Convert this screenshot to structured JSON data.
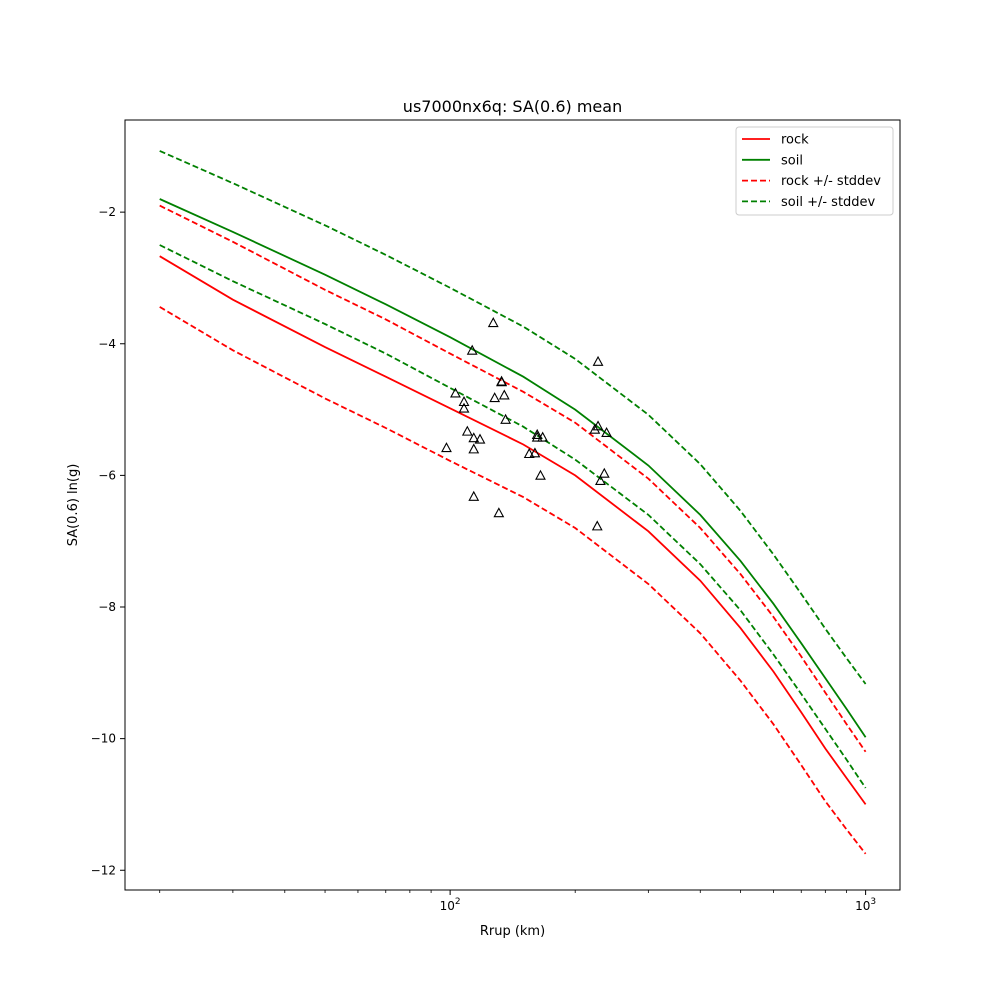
{
  "chart_data": {
    "type": "line",
    "title": "us7000nx6q: SA(0.6) mean",
    "xlabel": "Rrup (km)",
    "ylabel": "SA(0.6) ln(g)",
    "xscale": "log",
    "xlim": [
      16.5,
      1210
    ],
    "ylim": [
      -12.3,
      -0.6
    ],
    "x_ticks": [
      {
        "value": 100,
        "label": "10",
        "exp": "2"
      },
      {
        "value": 1000,
        "label": "10",
        "exp": "3"
      }
    ],
    "y_ticks": [
      {
        "value": -2,
        "label": "−2"
      },
      {
        "value": -4,
        "label": "−4"
      },
      {
        "value": -6,
        "label": "−6"
      },
      {
        "value": -8,
        "label": "−8"
      },
      {
        "value": -10,
        "label": "−10"
      },
      {
        "value": -12,
        "label": "−12"
      }
    ],
    "grid": false,
    "legend_position": "top-right",
    "series": [
      {
        "name": "rock",
        "color": "#ff0000",
        "dash": "solid",
        "x": [
          20,
          30,
          50,
          70,
          100,
          150,
          200,
          300,
          400,
          500,
          600,
          700,
          800,
          900,
          1000
        ],
        "y": [
          -2.67,
          -3.33,
          -4.05,
          -4.5,
          -4.98,
          -5.53,
          -6.0,
          -6.85,
          -7.6,
          -8.32,
          -8.98,
          -9.6,
          -10.15,
          -10.6,
          -11.0
        ]
      },
      {
        "name": "soil",
        "color": "#008000",
        "dash": "solid",
        "x": [
          20,
          30,
          50,
          70,
          100,
          150,
          200,
          300,
          400,
          500,
          600,
          700,
          800,
          900,
          1000
        ],
        "y": [
          -1.8,
          -2.3,
          -2.95,
          -3.4,
          -3.9,
          -4.5,
          -5.0,
          -5.85,
          -6.6,
          -7.3,
          -7.95,
          -8.55,
          -9.08,
          -9.55,
          -9.98
        ]
      },
      {
        "name": "rock +/- stddev",
        "color": "#ff0000",
        "dash": "dashed",
        "x": [
          20,
          30,
          50,
          70,
          100,
          150,
          200,
          300,
          400,
          500,
          600,
          700,
          800,
          900,
          1000
        ],
        "y": [
          -1.9,
          -2.45,
          -3.18,
          -3.63,
          -4.15,
          -4.73,
          -5.2,
          -6.05,
          -6.8,
          -7.5,
          -8.15,
          -8.75,
          -9.3,
          -9.78,
          -10.2
        ]
      },
      {
        "name": "rock +/- stddev",
        "color": "#ff0000",
        "dash": "dashed",
        "x": [
          20,
          30,
          50,
          70,
          100,
          150,
          200,
          300,
          400,
          500,
          600,
          700,
          800,
          900,
          1000
        ],
        "y": [
          -3.44,
          -4.1,
          -4.83,
          -5.28,
          -5.78,
          -6.33,
          -6.8,
          -7.65,
          -8.4,
          -9.12,
          -9.78,
          -10.4,
          -10.95,
          -11.38,
          -11.75
        ]
      },
      {
        "name": "soil +/- stddev",
        "color": "#008000",
        "dash": "dashed",
        "x": [
          20,
          30,
          50,
          70,
          100,
          150,
          200,
          300,
          400,
          500,
          600,
          700,
          800,
          900,
          1000
        ],
        "y": [
          -1.07,
          -1.56,
          -2.2,
          -2.65,
          -3.15,
          -3.74,
          -4.23,
          -5.08,
          -5.83,
          -6.54,
          -7.2,
          -7.8,
          -8.33,
          -8.78,
          -9.17
        ]
      },
      {
        "name": "soil +/- stddev",
        "color": "#008000",
        "dash": "dashed",
        "x": [
          20,
          30,
          50,
          70,
          100,
          150,
          200,
          300,
          400,
          500,
          600,
          700,
          800,
          900,
          1000
        ],
        "y": [
          -2.5,
          -3.05,
          -3.7,
          -4.15,
          -4.67,
          -5.26,
          -5.76,
          -6.6,
          -7.35,
          -8.05,
          -8.72,
          -9.32,
          -9.85,
          -10.32,
          -10.75
        ]
      }
    ],
    "observations": {
      "marker": "triangle-open",
      "color": "#000000",
      "points": [
        {
          "x": 98,
          "y": -5.58
        },
        {
          "x": 103,
          "y": -4.75
        },
        {
          "x": 108,
          "y": -4.88
        },
        {
          "x": 108,
          "y": -4.98
        },
        {
          "x": 110,
          "y": -5.33
        },
        {
          "x": 113,
          "y": -4.1
        },
        {
          "x": 114,
          "y": -5.43
        },
        {
          "x": 114,
          "y": -5.6
        },
        {
          "x": 114,
          "y": -6.32
        },
        {
          "x": 118,
          "y": -5.45
        },
        {
          "x": 127,
          "y": -3.68
        },
        {
          "x": 128,
          "y": -4.82
        },
        {
          "x": 131,
          "y": -6.57
        },
        {
          "x": 133,
          "y": -4.58
        },
        {
          "x": 133,
          "y": -4.57
        },
        {
          "x": 135,
          "y": -4.78
        },
        {
          "x": 136,
          "y": -5.15
        },
        {
          "x": 155,
          "y": -5.67
        },
        {
          "x": 160,
          "y": -5.66
        },
        {
          "x": 162,
          "y": -5.38
        },
        {
          "x": 162,
          "y": -5.42
        },
        {
          "x": 165,
          "y": -6.0
        },
        {
          "x": 167,
          "y": -5.42
        },
        {
          "x": 223,
          "y": -5.3
        },
        {
          "x": 227,
          "y": -4.27
        },
        {
          "x": 227,
          "y": -5.25
        },
        {
          "x": 226,
          "y": -6.77
        },
        {
          "x": 230,
          "y": -6.08
        },
        {
          "x": 235,
          "y": -5.97
        },
        {
          "x": 238,
          "y": -5.35
        }
      ]
    },
    "legend": [
      {
        "label": "rock",
        "color": "#ff0000",
        "dash": "solid"
      },
      {
        "label": "soil",
        "color": "#008000",
        "dash": "solid"
      },
      {
        "label": "rock +/- stddev",
        "color": "#ff0000",
        "dash": "dashed"
      },
      {
        "label": "soil +/- stddev",
        "color": "#008000",
        "dash": "dashed"
      }
    ]
  }
}
